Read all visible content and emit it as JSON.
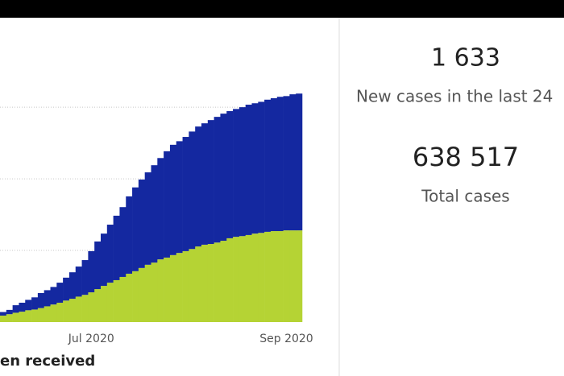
{
  "chart_data": {
    "type": "stacked-bar",
    "categories": [
      null,
      null,
      null,
      null,
      null,
      null,
      null,
      null,
      null,
      null,
      null,
      null,
      null,
      null,
      "Jul 2020",
      null,
      null,
      null,
      null,
      null,
      null,
      null,
      null,
      null,
      null,
      null,
      null,
      null,
      null,
      null,
      null,
      null,
      null,
      null,
      null,
      null,
      null,
      null,
      null,
      null,
      null,
      null,
      null,
      null,
      null,
      "Sep 2020",
      null,
      null
    ],
    "series": [
      {
        "color": "#b5d334",
        "values": [
          18000,
          22000,
          26000,
          29000,
          33000,
          35000,
          39000,
          44000,
          49000,
          54000,
          60000,
          65000,
          71000,
          76000,
          83000,
          92000,
          101000,
          110000,
          117000,
          126000,
          135000,
          142000,
          151000,
          160000,
          166000,
          175000,
          180000,
          187000,
          193000,
          198000,
          204000,
          211000,
          216000,
          218000,
          222000,
          227000,
          234000,
          238000,
          240000,
          243000,
          247000,
          249000,
          252000,
          254000,
          254000,
          256000,
          256000,
          256000
        ]
      },
      {
        "color": "#1428a0",
        "values": [
          10000,
          12000,
          21000,
          25000,
          29000,
          34000,
          42000,
          45000,
          49000,
          56000,
          64000,
          74000,
          84000,
          97000,
          115000,
          133000,
          146000,
          162000,
          180000,
          195000,
          216000,
          234000,
          247000,
          258000,
          272000,
          283000,
          297000,
          308000,
          312000,
          319000,
          328000,
          335000,
          339000,
          346000,
          351000,
          355000,
          355000,
          357000,
          360000,
          364000,
          364000,
          366000,
          369000,
          371000,
          375000,
          375000,
          380000,
          382000
        ]
      }
    ],
    "ylim": [
      0,
      638517
    ],
    "yticks": [
      200000,
      400000,
      600000
    ],
    "grid": true
  },
  "kpis": [
    {
      "value": "1 633",
      "label": "New cases in the last 24"
    },
    {
      "value": "638 517",
      "label": "Total cases"
    }
  ],
  "footer": "en received"
}
